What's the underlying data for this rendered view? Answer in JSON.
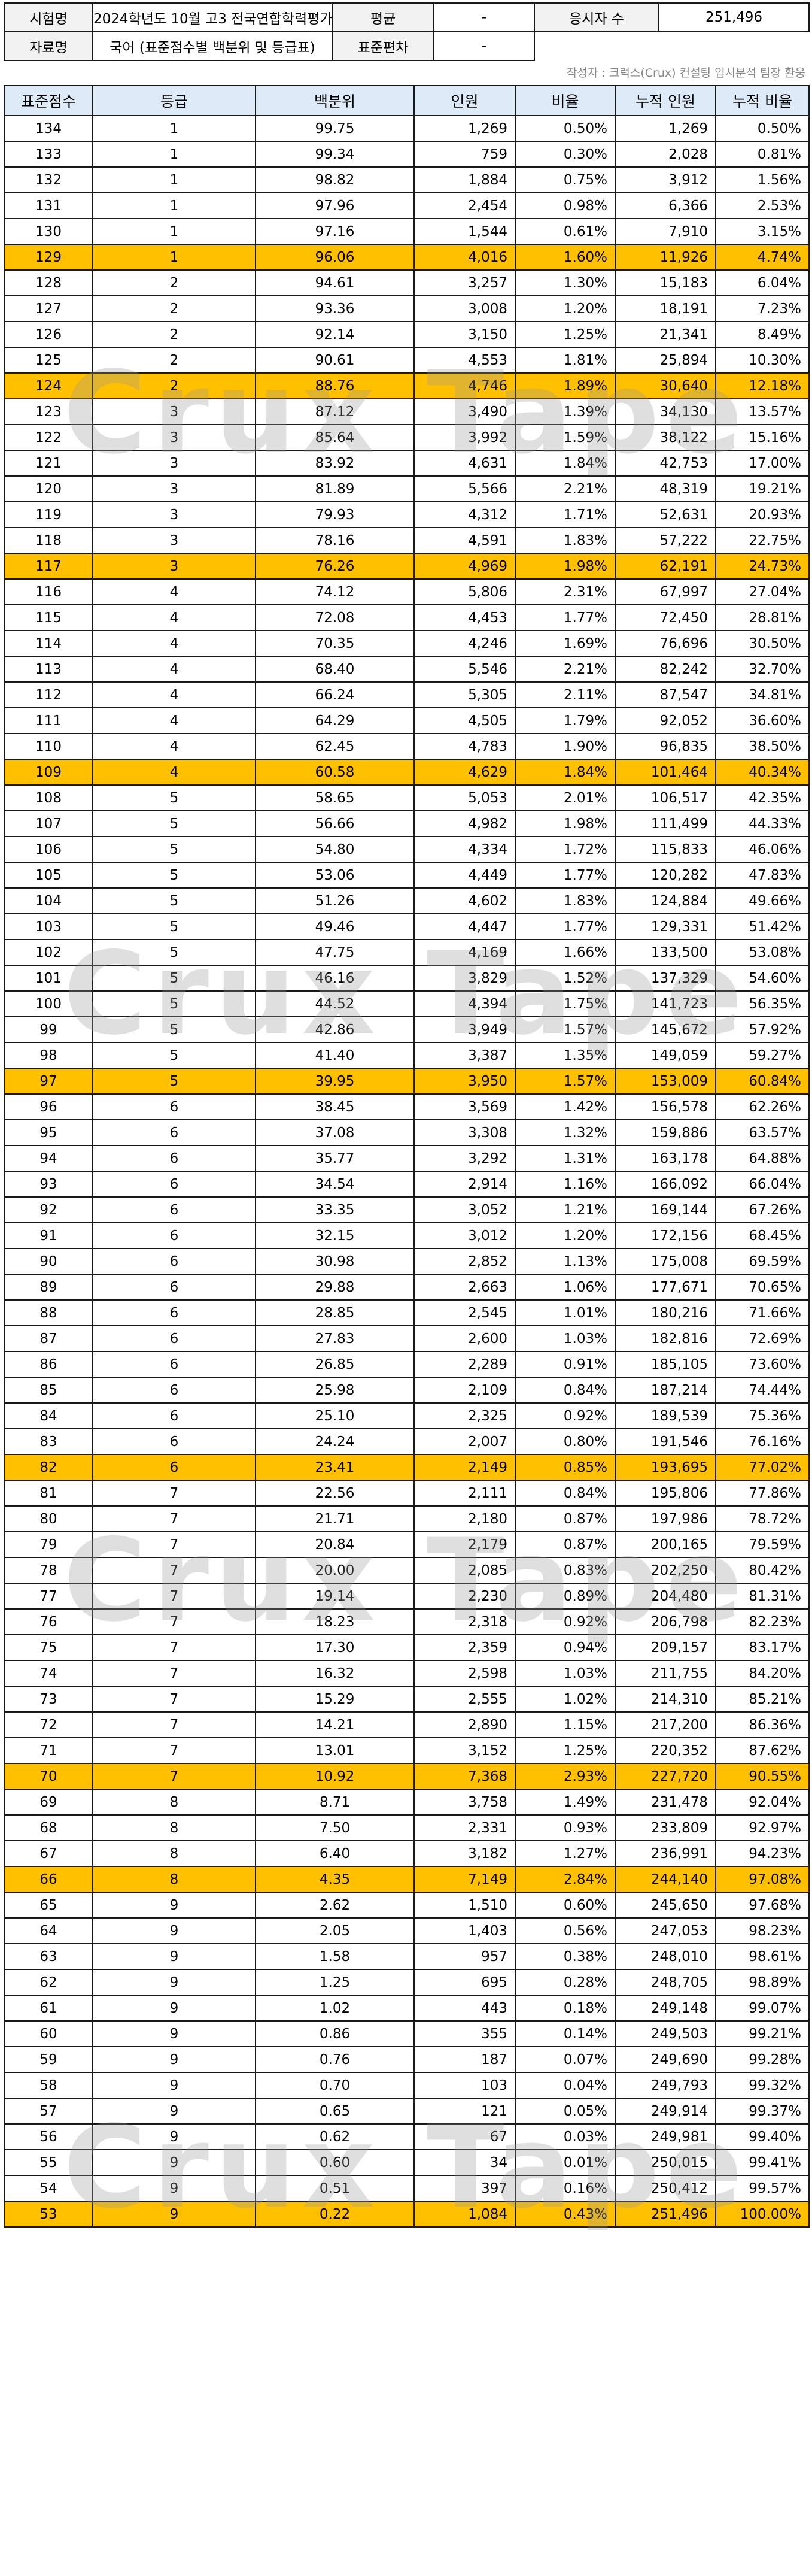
{
  "header": {
    "exam_label": "시험명",
    "exam_value": "2024학년도 10월 고3 전국연합학력평가",
    "mean_label": "평균",
    "mean_value": "-",
    "takers_label": "응시자 수",
    "takers_value": "251,496",
    "data_label": "자료명",
    "data_value": "국어 (표준점수별 백분위 및 등급표)",
    "sd_label": "표준편차",
    "sd_value": "-"
  },
  "credit": "작성자 : 크럭스(Crux) 컨설팅 입시분석 팀장 환웅",
  "watermark": "Crux Tape",
  "table": {
    "columns": [
      "표준점수",
      "등급",
      "백분위",
      "인원",
      "비율",
      "누적 인원",
      "누적 비율"
    ],
    "highlight_color": "#ffc000",
    "rows": [
      {
        "score": "134",
        "grade": "1",
        "pct": "99.75",
        "count": "1,269",
        "ratio": "0.50%",
        "cum_count": "1,269",
        "cum_ratio": "0.50%",
        "hl": false
      },
      {
        "score": "133",
        "grade": "1",
        "pct": "99.34",
        "count": "759",
        "ratio": "0.30%",
        "cum_count": "2,028",
        "cum_ratio": "0.81%",
        "hl": false
      },
      {
        "score": "132",
        "grade": "1",
        "pct": "98.82",
        "count": "1,884",
        "ratio": "0.75%",
        "cum_count": "3,912",
        "cum_ratio": "1.56%",
        "hl": false
      },
      {
        "score": "131",
        "grade": "1",
        "pct": "97.96",
        "count": "2,454",
        "ratio": "0.98%",
        "cum_count": "6,366",
        "cum_ratio": "2.53%",
        "hl": false
      },
      {
        "score": "130",
        "grade": "1",
        "pct": "97.16",
        "count": "1,544",
        "ratio": "0.61%",
        "cum_count": "7,910",
        "cum_ratio": "3.15%",
        "hl": false
      },
      {
        "score": "129",
        "grade": "1",
        "pct": "96.06",
        "count": "4,016",
        "ratio": "1.60%",
        "cum_count": "11,926",
        "cum_ratio": "4.74%",
        "hl": true
      },
      {
        "score": "128",
        "grade": "2",
        "pct": "94.61",
        "count": "3,257",
        "ratio": "1.30%",
        "cum_count": "15,183",
        "cum_ratio": "6.04%",
        "hl": false
      },
      {
        "score": "127",
        "grade": "2",
        "pct": "93.36",
        "count": "3,008",
        "ratio": "1.20%",
        "cum_count": "18,191",
        "cum_ratio": "7.23%",
        "hl": false
      },
      {
        "score": "126",
        "grade": "2",
        "pct": "92.14",
        "count": "3,150",
        "ratio": "1.25%",
        "cum_count": "21,341",
        "cum_ratio": "8.49%",
        "hl": false
      },
      {
        "score": "125",
        "grade": "2",
        "pct": "90.61",
        "count": "4,553",
        "ratio": "1.81%",
        "cum_count": "25,894",
        "cum_ratio": "10.30%",
        "hl": false
      },
      {
        "score": "124",
        "grade": "2",
        "pct": "88.76",
        "count": "4,746",
        "ratio": "1.89%",
        "cum_count": "30,640",
        "cum_ratio": "12.18%",
        "hl": true
      },
      {
        "score": "123",
        "grade": "3",
        "pct": "87.12",
        "count": "3,490",
        "ratio": "1.39%",
        "cum_count": "34,130",
        "cum_ratio": "13.57%",
        "hl": false
      },
      {
        "score": "122",
        "grade": "3",
        "pct": "85.64",
        "count": "3,992",
        "ratio": "1.59%",
        "cum_count": "38,122",
        "cum_ratio": "15.16%",
        "hl": false
      },
      {
        "score": "121",
        "grade": "3",
        "pct": "83.92",
        "count": "4,631",
        "ratio": "1.84%",
        "cum_count": "42,753",
        "cum_ratio": "17.00%",
        "hl": false
      },
      {
        "score": "120",
        "grade": "3",
        "pct": "81.89",
        "count": "5,566",
        "ratio": "2.21%",
        "cum_count": "48,319",
        "cum_ratio": "19.21%",
        "hl": false
      },
      {
        "score": "119",
        "grade": "3",
        "pct": "79.93",
        "count": "4,312",
        "ratio": "1.71%",
        "cum_count": "52,631",
        "cum_ratio": "20.93%",
        "hl": false
      },
      {
        "score": "118",
        "grade": "3",
        "pct": "78.16",
        "count": "4,591",
        "ratio": "1.83%",
        "cum_count": "57,222",
        "cum_ratio": "22.75%",
        "hl": false
      },
      {
        "score": "117",
        "grade": "3",
        "pct": "76.26",
        "count": "4,969",
        "ratio": "1.98%",
        "cum_count": "62,191",
        "cum_ratio": "24.73%",
        "hl": true
      },
      {
        "score": "116",
        "grade": "4",
        "pct": "74.12",
        "count": "5,806",
        "ratio": "2.31%",
        "cum_count": "67,997",
        "cum_ratio": "27.04%",
        "hl": false
      },
      {
        "score": "115",
        "grade": "4",
        "pct": "72.08",
        "count": "4,453",
        "ratio": "1.77%",
        "cum_count": "72,450",
        "cum_ratio": "28.81%",
        "hl": false
      },
      {
        "score": "114",
        "grade": "4",
        "pct": "70.35",
        "count": "4,246",
        "ratio": "1.69%",
        "cum_count": "76,696",
        "cum_ratio": "30.50%",
        "hl": false
      },
      {
        "score": "113",
        "grade": "4",
        "pct": "68.40",
        "count": "5,546",
        "ratio": "2.21%",
        "cum_count": "82,242",
        "cum_ratio": "32.70%",
        "hl": false
      },
      {
        "score": "112",
        "grade": "4",
        "pct": "66.24",
        "count": "5,305",
        "ratio": "2.11%",
        "cum_count": "87,547",
        "cum_ratio": "34.81%",
        "hl": false
      },
      {
        "score": "111",
        "grade": "4",
        "pct": "64.29",
        "count": "4,505",
        "ratio": "1.79%",
        "cum_count": "92,052",
        "cum_ratio": "36.60%",
        "hl": false
      },
      {
        "score": "110",
        "grade": "4",
        "pct": "62.45",
        "count": "4,783",
        "ratio": "1.90%",
        "cum_count": "96,835",
        "cum_ratio": "38.50%",
        "hl": false
      },
      {
        "score": "109",
        "grade": "4",
        "pct": "60.58",
        "count": "4,629",
        "ratio": "1.84%",
        "cum_count": "101,464",
        "cum_ratio": "40.34%",
        "hl": true
      },
      {
        "score": "108",
        "grade": "5",
        "pct": "58.65",
        "count": "5,053",
        "ratio": "2.01%",
        "cum_count": "106,517",
        "cum_ratio": "42.35%",
        "hl": false
      },
      {
        "score": "107",
        "grade": "5",
        "pct": "56.66",
        "count": "4,982",
        "ratio": "1.98%",
        "cum_count": "111,499",
        "cum_ratio": "44.33%",
        "hl": false
      },
      {
        "score": "106",
        "grade": "5",
        "pct": "54.80",
        "count": "4,334",
        "ratio": "1.72%",
        "cum_count": "115,833",
        "cum_ratio": "46.06%",
        "hl": false
      },
      {
        "score": "105",
        "grade": "5",
        "pct": "53.06",
        "count": "4,449",
        "ratio": "1.77%",
        "cum_count": "120,282",
        "cum_ratio": "47.83%",
        "hl": false
      },
      {
        "score": "104",
        "grade": "5",
        "pct": "51.26",
        "count": "4,602",
        "ratio": "1.83%",
        "cum_count": "124,884",
        "cum_ratio": "49.66%",
        "hl": false
      },
      {
        "score": "103",
        "grade": "5",
        "pct": "49.46",
        "count": "4,447",
        "ratio": "1.77%",
        "cum_count": "129,331",
        "cum_ratio": "51.42%",
        "hl": false
      },
      {
        "score": "102",
        "grade": "5",
        "pct": "47.75",
        "count": "4,169",
        "ratio": "1.66%",
        "cum_count": "133,500",
        "cum_ratio": "53.08%",
        "hl": false
      },
      {
        "score": "101",
        "grade": "5",
        "pct": "46.16",
        "count": "3,829",
        "ratio": "1.52%",
        "cum_count": "137,329",
        "cum_ratio": "54.60%",
        "hl": false
      },
      {
        "score": "100",
        "grade": "5",
        "pct": "44.52",
        "count": "4,394",
        "ratio": "1.75%",
        "cum_count": "141,723",
        "cum_ratio": "56.35%",
        "hl": false
      },
      {
        "score": "99",
        "grade": "5",
        "pct": "42.86",
        "count": "3,949",
        "ratio": "1.57%",
        "cum_count": "145,672",
        "cum_ratio": "57.92%",
        "hl": false
      },
      {
        "score": "98",
        "grade": "5",
        "pct": "41.40",
        "count": "3,387",
        "ratio": "1.35%",
        "cum_count": "149,059",
        "cum_ratio": "59.27%",
        "hl": false
      },
      {
        "score": "97",
        "grade": "5",
        "pct": "39.95",
        "count": "3,950",
        "ratio": "1.57%",
        "cum_count": "153,009",
        "cum_ratio": "60.84%",
        "hl": true
      },
      {
        "score": "96",
        "grade": "6",
        "pct": "38.45",
        "count": "3,569",
        "ratio": "1.42%",
        "cum_count": "156,578",
        "cum_ratio": "62.26%",
        "hl": false
      },
      {
        "score": "95",
        "grade": "6",
        "pct": "37.08",
        "count": "3,308",
        "ratio": "1.32%",
        "cum_count": "159,886",
        "cum_ratio": "63.57%",
        "hl": false
      },
      {
        "score": "94",
        "grade": "6",
        "pct": "35.77",
        "count": "3,292",
        "ratio": "1.31%",
        "cum_count": "163,178",
        "cum_ratio": "64.88%",
        "hl": false
      },
      {
        "score": "93",
        "grade": "6",
        "pct": "34.54",
        "count": "2,914",
        "ratio": "1.16%",
        "cum_count": "166,092",
        "cum_ratio": "66.04%",
        "hl": false
      },
      {
        "score": "92",
        "grade": "6",
        "pct": "33.35",
        "count": "3,052",
        "ratio": "1.21%",
        "cum_count": "169,144",
        "cum_ratio": "67.26%",
        "hl": false
      },
      {
        "score": "91",
        "grade": "6",
        "pct": "32.15",
        "count": "3,012",
        "ratio": "1.20%",
        "cum_count": "172,156",
        "cum_ratio": "68.45%",
        "hl": false
      },
      {
        "score": "90",
        "grade": "6",
        "pct": "30.98",
        "count": "2,852",
        "ratio": "1.13%",
        "cum_count": "175,008",
        "cum_ratio": "69.59%",
        "hl": false
      },
      {
        "score": "89",
        "grade": "6",
        "pct": "29.88",
        "count": "2,663",
        "ratio": "1.06%",
        "cum_count": "177,671",
        "cum_ratio": "70.65%",
        "hl": false
      },
      {
        "score": "88",
        "grade": "6",
        "pct": "28.85",
        "count": "2,545",
        "ratio": "1.01%",
        "cum_count": "180,216",
        "cum_ratio": "71.66%",
        "hl": false
      },
      {
        "score": "87",
        "grade": "6",
        "pct": "27.83",
        "count": "2,600",
        "ratio": "1.03%",
        "cum_count": "182,816",
        "cum_ratio": "72.69%",
        "hl": false
      },
      {
        "score": "86",
        "grade": "6",
        "pct": "26.85",
        "count": "2,289",
        "ratio": "0.91%",
        "cum_count": "185,105",
        "cum_ratio": "73.60%",
        "hl": false
      },
      {
        "score": "85",
        "grade": "6",
        "pct": "25.98",
        "count": "2,109",
        "ratio": "0.84%",
        "cum_count": "187,214",
        "cum_ratio": "74.44%",
        "hl": false
      },
      {
        "score": "84",
        "grade": "6",
        "pct": "25.10",
        "count": "2,325",
        "ratio": "0.92%",
        "cum_count": "189,539",
        "cum_ratio": "75.36%",
        "hl": false
      },
      {
        "score": "83",
        "grade": "6",
        "pct": "24.24",
        "count": "2,007",
        "ratio": "0.80%",
        "cum_count": "191,546",
        "cum_ratio": "76.16%",
        "hl": false
      },
      {
        "score": "82",
        "grade": "6",
        "pct": "23.41",
        "count": "2,149",
        "ratio": "0.85%",
        "cum_count": "193,695",
        "cum_ratio": "77.02%",
        "hl": true
      },
      {
        "score": "81",
        "grade": "7",
        "pct": "22.56",
        "count": "2,111",
        "ratio": "0.84%",
        "cum_count": "195,806",
        "cum_ratio": "77.86%",
        "hl": false
      },
      {
        "score": "80",
        "grade": "7",
        "pct": "21.71",
        "count": "2,180",
        "ratio": "0.87%",
        "cum_count": "197,986",
        "cum_ratio": "78.72%",
        "hl": false
      },
      {
        "score": "79",
        "grade": "7",
        "pct": "20.84",
        "count": "2,179",
        "ratio": "0.87%",
        "cum_count": "200,165",
        "cum_ratio": "79.59%",
        "hl": false
      },
      {
        "score": "78",
        "grade": "7",
        "pct": "20.00",
        "count": "2,085",
        "ratio": "0.83%",
        "cum_count": "202,250",
        "cum_ratio": "80.42%",
        "hl": false
      },
      {
        "score": "77",
        "grade": "7",
        "pct": "19.14",
        "count": "2,230",
        "ratio": "0.89%",
        "cum_count": "204,480",
        "cum_ratio": "81.31%",
        "hl": false
      },
      {
        "score": "76",
        "grade": "7",
        "pct": "18.23",
        "count": "2,318",
        "ratio": "0.92%",
        "cum_count": "206,798",
        "cum_ratio": "82.23%",
        "hl": false
      },
      {
        "score": "75",
        "grade": "7",
        "pct": "17.30",
        "count": "2,359",
        "ratio": "0.94%",
        "cum_count": "209,157",
        "cum_ratio": "83.17%",
        "hl": false
      },
      {
        "score": "74",
        "grade": "7",
        "pct": "16.32",
        "count": "2,598",
        "ratio": "1.03%",
        "cum_count": "211,755",
        "cum_ratio": "84.20%",
        "hl": false
      },
      {
        "score": "73",
        "grade": "7",
        "pct": "15.29",
        "count": "2,555",
        "ratio": "1.02%",
        "cum_count": "214,310",
        "cum_ratio": "85.21%",
        "hl": false
      },
      {
        "score": "72",
        "grade": "7",
        "pct": "14.21",
        "count": "2,890",
        "ratio": "1.15%",
        "cum_count": "217,200",
        "cum_ratio": "86.36%",
        "hl": false
      },
      {
        "score": "71",
        "grade": "7",
        "pct": "13.01",
        "count": "3,152",
        "ratio": "1.25%",
        "cum_count": "220,352",
        "cum_ratio": "87.62%",
        "hl": false
      },
      {
        "score": "70",
        "grade": "7",
        "pct": "10.92",
        "count": "7,368",
        "ratio": "2.93%",
        "cum_count": "227,720",
        "cum_ratio": "90.55%",
        "hl": true
      },
      {
        "score": "69",
        "grade": "8",
        "pct": "8.71",
        "count": "3,758",
        "ratio": "1.49%",
        "cum_count": "231,478",
        "cum_ratio": "92.04%",
        "hl": false
      },
      {
        "score": "68",
        "grade": "8",
        "pct": "7.50",
        "count": "2,331",
        "ratio": "0.93%",
        "cum_count": "233,809",
        "cum_ratio": "92.97%",
        "hl": false
      },
      {
        "score": "67",
        "grade": "8",
        "pct": "6.40",
        "count": "3,182",
        "ratio": "1.27%",
        "cum_count": "236,991",
        "cum_ratio": "94.23%",
        "hl": false
      },
      {
        "score": "66",
        "grade": "8",
        "pct": "4.35",
        "count": "7,149",
        "ratio": "2.84%",
        "cum_count": "244,140",
        "cum_ratio": "97.08%",
        "hl": true
      },
      {
        "score": "65",
        "grade": "9",
        "pct": "2.62",
        "count": "1,510",
        "ratio": "0.60%",
        "cum_count": "245,650",
        "cum_ratio": "97.68%",
        "hl": false
      },
      {
        "score": "64",
        "grade": "9",
        "pct": "2.05",
        "count": "1,403",
        "ratio": "0.56%",
        "cum_count": "247,053",
        "cum_ratio": "98.23%",
        "hl": false
      },
      {
        "score": "63",
        "grade": "9",
        "pct": "1.58",
        "count": "957",
        "ratio": "0.38%",
        "cum_count": "248,010",
        "cum_ratio": "98.61%",
        "hl": false
      },
      {
        "score": "62",
        "grade": "9",
        "pct": "1.25",
        "count": "695",
        "ratio": "0.28%",
        "cum_count": "248,705",
        "cum_ratio": "98.89%",
        "hl": false
      },
      {
        "score": "61",
        "grade": "9",
        "pct": "1.02",
        "count": "443",
        "ratio": "0.18%",
        "cum_count": "249,148",
        "cum_ratio": "99.07%",
        "hl": false
      },
      {
        "score": "60",
        "grade": "9",
        "pct": "0.86",
        "count": "355",
        "ratio": "0.14%",
        "cum_count": "249,503",
        "cum_ratio": "99.21%",
        "hl": false
      },
      {
        "score": "59",
        "grade": "9",
        "pct": "0.76",
        "count": "187",
        "ratio": "0.07%",
        "cum_count": "249,690",
        "cum_ratio": "99.28%",
        "hl": false
      },
      {
        "score": "58",
        "grade": "9",
        "pct": "0.70",
        "count": "103",
        "ratio": "0.04%",
        "cum_count": "249,793",
        "cum_ratio": "99.32%",
        "hl": false
      },
      {
        "score": "57",
        "grade": "9",
        "pct": "0.65",
        "count": "121",
        "ratio": "0.05%",
        "cum_count": "249,914",
        "cum_ratio": "99.37%",
        "hl": false
      },
      {
        "score": "56",
        "grade": "9",
        "pct": "0.62",
        "count": "67",
        "ratio": "0.03%",
        "cum_count": "249,981",
        "cum_ratio": "99.40%",
        "hl": false
      },
      {
        "score": "55",
        "grade": "9",
        "pct": "0.60",
        "count": "34",
        "ratio": "0.01%",
        "cum_count": "250,015",
        "cum_ratio": "99.41%",
        "hl": false
      },
      {
        "score": "54",
        "grade": "9",
        "pct": "0.51",
        "count": "397",
        "ratio": "0.16%",
        "cum_count": "250,412",
        "cum_ratio": "99.57%",
        "hl": false
      },
      {
        "score": "53",
        "grade": "9",
        "pct": "0.22",
        "count": "1,084",
        "ratio": "0.43%",
        "cum_count": "251,496",
        "cum_ratio": "100.00%",
        "hl": true
      }
    ]
  }
}
